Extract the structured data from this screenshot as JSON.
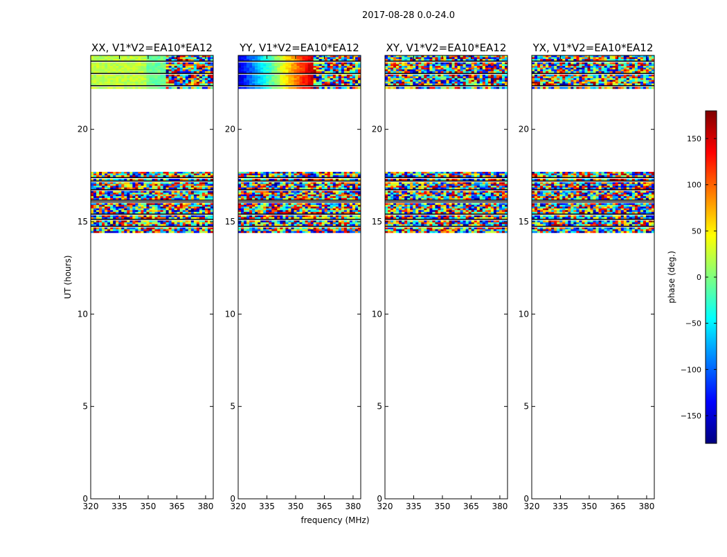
{
  "figure": {
    "suptitle": "2017-08-28 0.0-24.0",
    "xlabel": "frequency (MHz)",
    "ylabel": "UT (hours)"
  },
  "colorbar": {
    "label": "phase (deg.)",
    "ticks": [
      150,
      100,
      50,
      0,
      -50,
      -100,
      -150
    ],
    "tick_labels": [
      "150",
      "100",
      "50",
      "0",
      "−50",
      "−100",
      "−150"
    ],
    "range": [
      -180,
      180
    ],
    "colormap": "jet"
  },
  "chart_data": [
    {
      "type": "heatmap",
      "title": "XX, V1*V2=EA10*EA12",
      "xlim": [
        320,
        384
      ],
      "ylim": [
        0,
        24
      ],
      "xticks": [
        320,
        335,
        350,
        365,
        380
      ],
      "yticks": [
        0,
        5,
        10,
        15,
        20
      ],
      "data_time_ranges_hours": [
        [
          14.4,
          17.7
        ],
        [
          22.2,
          24.0
        ]
      ],
      "notes": "dominant phase around -10 to 20 deg in 22.2-24 h band for 320-360 MHz; fringes above ~360 MHz"
    },
    {
      "type": "heatmap",
      "title": "YY, V1*V2=EA10*EA12",
      "xlim": [
        320,
        384
      ],
      "ylim": [
        0,
        24
      ],
      "xticks": [
        320,
        335,
        350,
        365,
        380
      ],
      "yticks": [
        0,
        5,
        10,
        15,
        20
      ],
      "data_time_ranges_hours": [
        [
          14.4,
          17.7
        ],
        [
          22.2,
          24.0
        ]
      ],
      "notes": "phase from about -160 deg at 320 MHz rising to about +150 deg near 360 MHz in 22.2-24 h band"
    },
    {
      "type": "heatmap",
      "title": "XY, V1*V2=EA10*EA12",
      "xlim": [
        320,
        384
      ],
      "ylim": [
        0,
        24
      ],
      "xticks": [
        320,
        335,
        350,
        365,
        380
      ],
      "yticks": [
        0,
        5,
        10,
        15,
        20
      ],
      "data_time_ranges_hours": [
        [
          14.4,
          17.7
        ],
        [
          22.2,
          24.0
        ]
      ],
      "notes": "noisy phase, cross-hand"
    },
    {
      "type": "heatmap",
      "title": "YX, V1*V2=EA10*EA12",
      "xlim": [
        320,
        384
      ],
      "ylim": [
        0,
        24
      ],
      "xticks": [
        320,
        335,
        350,
        365,
        380
      ],
      "yticks": [
        0,
        5,
        10,
        15,
        20
      ],
      "data_time_ranges_hours": [
        [
          14.4,
          17.7
        ],
        [
          22.2,
          24.0
        ]
      ],
      "notes": "noisy phase, cross-hand"
    }
  ]
}
